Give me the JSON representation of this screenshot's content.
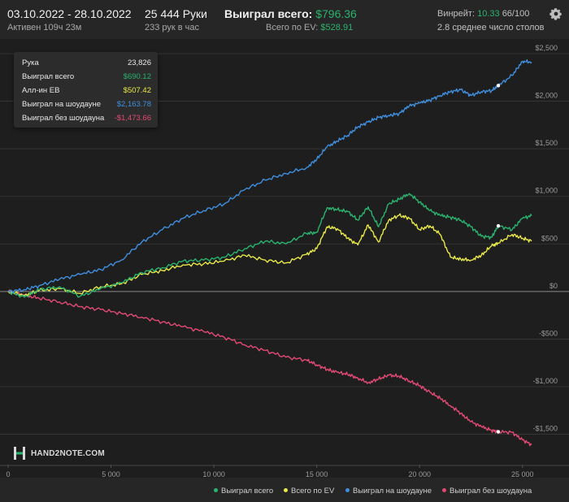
{
  "header": {
    "date_range": "03.10.2022 - 28.10.2022",
    "active": "Активен 109ч 23м",
    "hands": "25 444 Руки",
    "hands_per_hour": "233 рук в час",
    "won_label": "Выиграл всего:",
    "won_value": "$796.36",
    "ev_label": "Всего по EV:",
    "ev_value": "$528.91",
    "winrate_label": "Винрейт:",
    "winrate_value": "10.33",
    "winrate_rest": "66/100",
    "tables": "2.8 среднее число столов"
  },
  "tooltip": {
    "rows": [
      {
        "label": "Рука",
        "value": "23,826",
        "color": "#e8e8e8"
      },
      {
        "label": "Выиграл всего",
        "value": "$690.12",
        "color": "#2ab36e"
      },
      {
        "label": "Алл-ин ЕВ",
        "value": "$507.42",
        "color": "#e8e84a"
      },
      {
        "label": "Выиграл на шоудауне",
        "value": "$2,163.78",
        "color": "#3f8fde"
      },
      {
        "label": "Выиграл без шоудауна",
        "value": "-$1,473.66",
        "color": "#e24a75"
      }
    ]
  },
  "logo": {
    "text": "HAND2NOTE.COM",
    "icon": "hand2note-logo-icon"
  },
  "icons": {
    "settings": "gear-icon"
  },
  "chart_data": {
    "type": "line",
    "x_range": [
      0,
      25444
    ],
    "ylim": [
      -1700,
      2500
    ],
    "x_ticks": [
      {
        "value": 0,
        "label": "0"
      },
      {
        "value": 5000,
        "label": "5 000"
      },
      {
        "value": 10000,
        "label": "10 000"
      },
      {
        "value": 15000,
        "label": "15 000"
      },
      {
        "value": 20000,
        "label": "20 000"
      },
      {
        "value": 25000,
        "label": "25 000"
      }
    ],
    "y_ticks": [
      {
        "value": 2500,
        "label": "$2,500"
      },
      {
        "value": 2000,
        "label": "$2,000"
      },
      {
        "value": 1500,
        "label": "$1,500"
      },
      {
        "value": 1000,
        "label": "$1,000"
      },
      {
        "value": 500,
        "label": "$500"
      },
      {
        "value": 0,
        "label": "$0"
      },
      {
        "value": -500,
        "label": "-$500"
      },
      {
        "value": -1000,
        "label": "-$1,000"
      },
      {
        "value": -1500,
        "label": "-$1,500"
      }
    ],
    "grid": true,
    "legend_position": "bottom-right",
    "series": [
      {
        "name": "Выиграл всего",
        "color": "#2ab36e",
        "x": [
          0,
          800,
          1500,
          2500,
          3500,
          4500,
          5500,
          6500,
          7500,
          8500,
          9500,
          10500,
          11500,
          12500,
          13500,
          14500,
          15000,
          15500,
          16000,
          16500,
          17000,
          17500,
          18000,
          18500,
          19000,
          19500,
          20000,
          20500,
          21000,
          21500,
          22000,
          22500,
          23000,
          23500,
          23826,
          24500,
          25000,
          25444
        ],
        "y": [
          0,
          -60,
          20,
          50,
          -50,
          30,
          90,
          200,
          250,
          320,
          330,
          360,
          450,
          530,
          500,
          610,
          620,
          880,
          860,
          840,
          750,
          890,
          680,
          920,
          970,
          1030,
          940,
          850,
          800,
          780,
          750,
          680,
          580,
          570,
          690,
          650,
          770,
          796
        ]
      },
      {
        "name": "Всего по EV",
        "color": "#e8e84a",
        "x": [
          0,
          800,
          1500,
          2500,
          3500,
          4500,
          5500,
          6500,
          7500,
          8500,
          9500,
          10500,
          11500,
          12500,
          13500,
          14500,
          15000,
          15500,
          16000,
          16500,
          17000,
          17500,
          18000,
          18500,
          19000,
          19500,
          20000,
          20500,
          21000,
          21500,
          22000,
          22500,
          23000,
          23500,
          23826,
          24500,
          25000,
          25444
        ],
        "y": [
          0,
          -40,
          10,
          30,
          -20,
          50,
          80,
          180,
          220,
          280,
          290,
          320,
          380,
          330,
          300,
          390,
          450,
          680,
          660,
          560,
          490,
          700,
          520,
          750,
          800,
          770,
          650,
          690,
          600,
          360,
          340,
          330,
          380,
          480,
          507,
          600,
          560,
          529
        ]
      },
      {
        "name": "Выиграл на шоудауне",
        "color": "#3f8fde",
        "x": [
          0,
          800,
          1500,
          2500,
          3500,
          4500,
          5500,
          6500,
          7500,
          8500,
          9500,
          10500,
          11500,
          12500,
          13500,
          14500,
          15000,
          15500,
          16000,
          16500,
          17000,
          17500,
          18000,
          18500,
          19000,
          19500,
          20000,
          20500,
          21000,
          21500,
          22000,
          22500,
          23000,
          23500,
          23826,
          24500,
          25000,
          25444
        ],
        "y": [
          0,
          20,
          60,
          130,
          180,
          230,
          330,
          520,
          650,
          770,
          850,
          920,
          1070,
          1170,
          1240,
          1300,
          1390,
          1520,
          1580,
          1640,
          1730,
          1780,
          1830,
          1850,
          1870,
          1950,
          1980,
          2010,
          2060,
          2100,
          2120,
          2060,
          2100,
          2110,
          2164,
          2270,
          2420,
          2410
        ]
      },
      {
        "name": "Выиграл без шоудауна",
        "color": "#e24a75",
        "x": [
          0,
          800,
          1500,
          2500,
          3500,
          4500,
          5500,
          6500,
          7500,
          8500,
          9500,
          10500,
          11500,
          12500,
          13500,
          14500,
          15000,
          15500,
          16000,
          16500,
          17000,
          17500,
          18000,
          18500,
          19000,
          19500,
          20000,
          20500,
          21000,
          21500,
          22000,
          22500,
          23000,
          23500,
          23826,
          24500,
          25000,
          25444
        ],
        "y": [
          0,
          -40,
          -70,
          -110,
          -160,
          -190,
          -230,
          -270,
          -320,
          -370,
          -420,
          -480,
          -560,
          -620,
          -690,
          -720,
          -770,
          -820,
          -850,
          -870,
          -910,
          -960,
          -920,
          -880,
          -890,
          -940,
          -990,
          -1060,
          -1120,
          -1200,
          -1280,
          -1370,
          -1420,
          -1460,
          -1474,
          -1480,
          -1560,
          -1610
        ]
      }
    ],
    "markers": [
      {
        "series": 1,
        "x": 23826,
        "y": 690
      },
      {
        "series": 3,
        "x": 23826,
        "y": 2164
      },
      {
        "series": 4,
        "x": 23826,
        "y": -1474
      }
    ]
  }
}
